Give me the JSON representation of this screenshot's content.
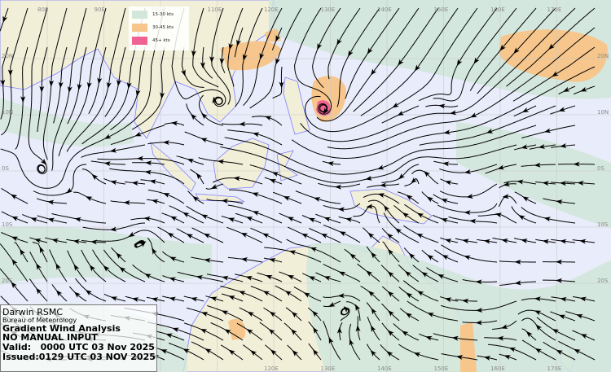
{
  "map": {
    "longitude_labels": [
      "80E",
      "90E",
      "100E",
      "110E",
      "120E",
      "130E",
      "140E",
      "150E",
      "160E",
      "170E"
    ],
    "latitude_labels": [
      "20N",
      "10N",
      "0S",
      "10S",
      "20S"
    ],
    "colors": {
      "ocean": "#e9ecfb",
      "land": "#f2efd9",
      "wind_15_30": "#d2e7da",
      "wind_30_45": "#f6c68c",
      "wind_45_plus": "#f06292",
      "coastline": "#7f7fff",
      "streamline": "#000000"
    }
  },
  "legend": {
    "items": [
      {
        "label": "15-30 kts",
        "color": "#d2e7da"
      },
      {
        "label": "30-45 kts",
        "color": "#f6c68c"
      },
      {
        "label": "45+ kts",
        "color": "#f06292"
      }
    ]
  },
  "info": {
    "centre": "Darwin RSMC",
    "agency": "Bureau of Meteorology",
    "product": "Gradient Wind Analysis",
    "note": "NO MANUAL INPUT",
    "valid": "Valid:   0000 UTC 03 Nov 2025",
    "issued": "Issued:0129 UTC 03 NOV 2025"
  }
}
